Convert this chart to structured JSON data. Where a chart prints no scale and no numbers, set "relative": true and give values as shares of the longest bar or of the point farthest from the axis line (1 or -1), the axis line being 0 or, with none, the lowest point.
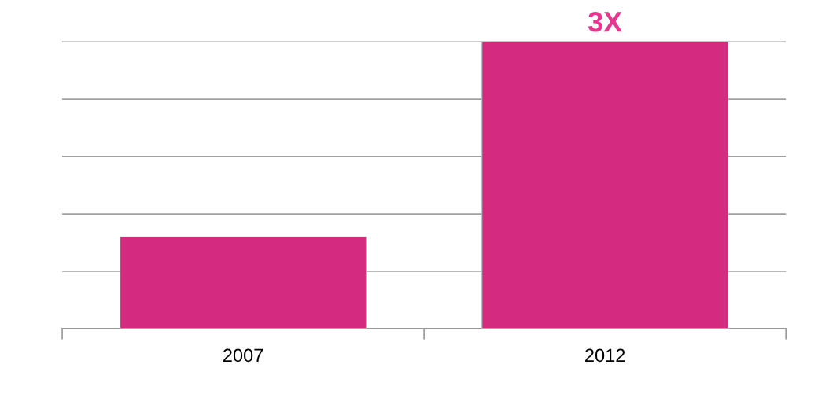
{
  "chart_data": {
    "type": "bar",
    "relative": true,
    "categories": [
      "2007",
      "2012"
    ],
    "values": [
      0.32,
      1
    ],
    "color": "#d42a7f",
    "grid": "y",
    "annotations": [
      {
        "text": "3X",
        "x": "2012",
        "y": 1
      }
    ]
  }
}
